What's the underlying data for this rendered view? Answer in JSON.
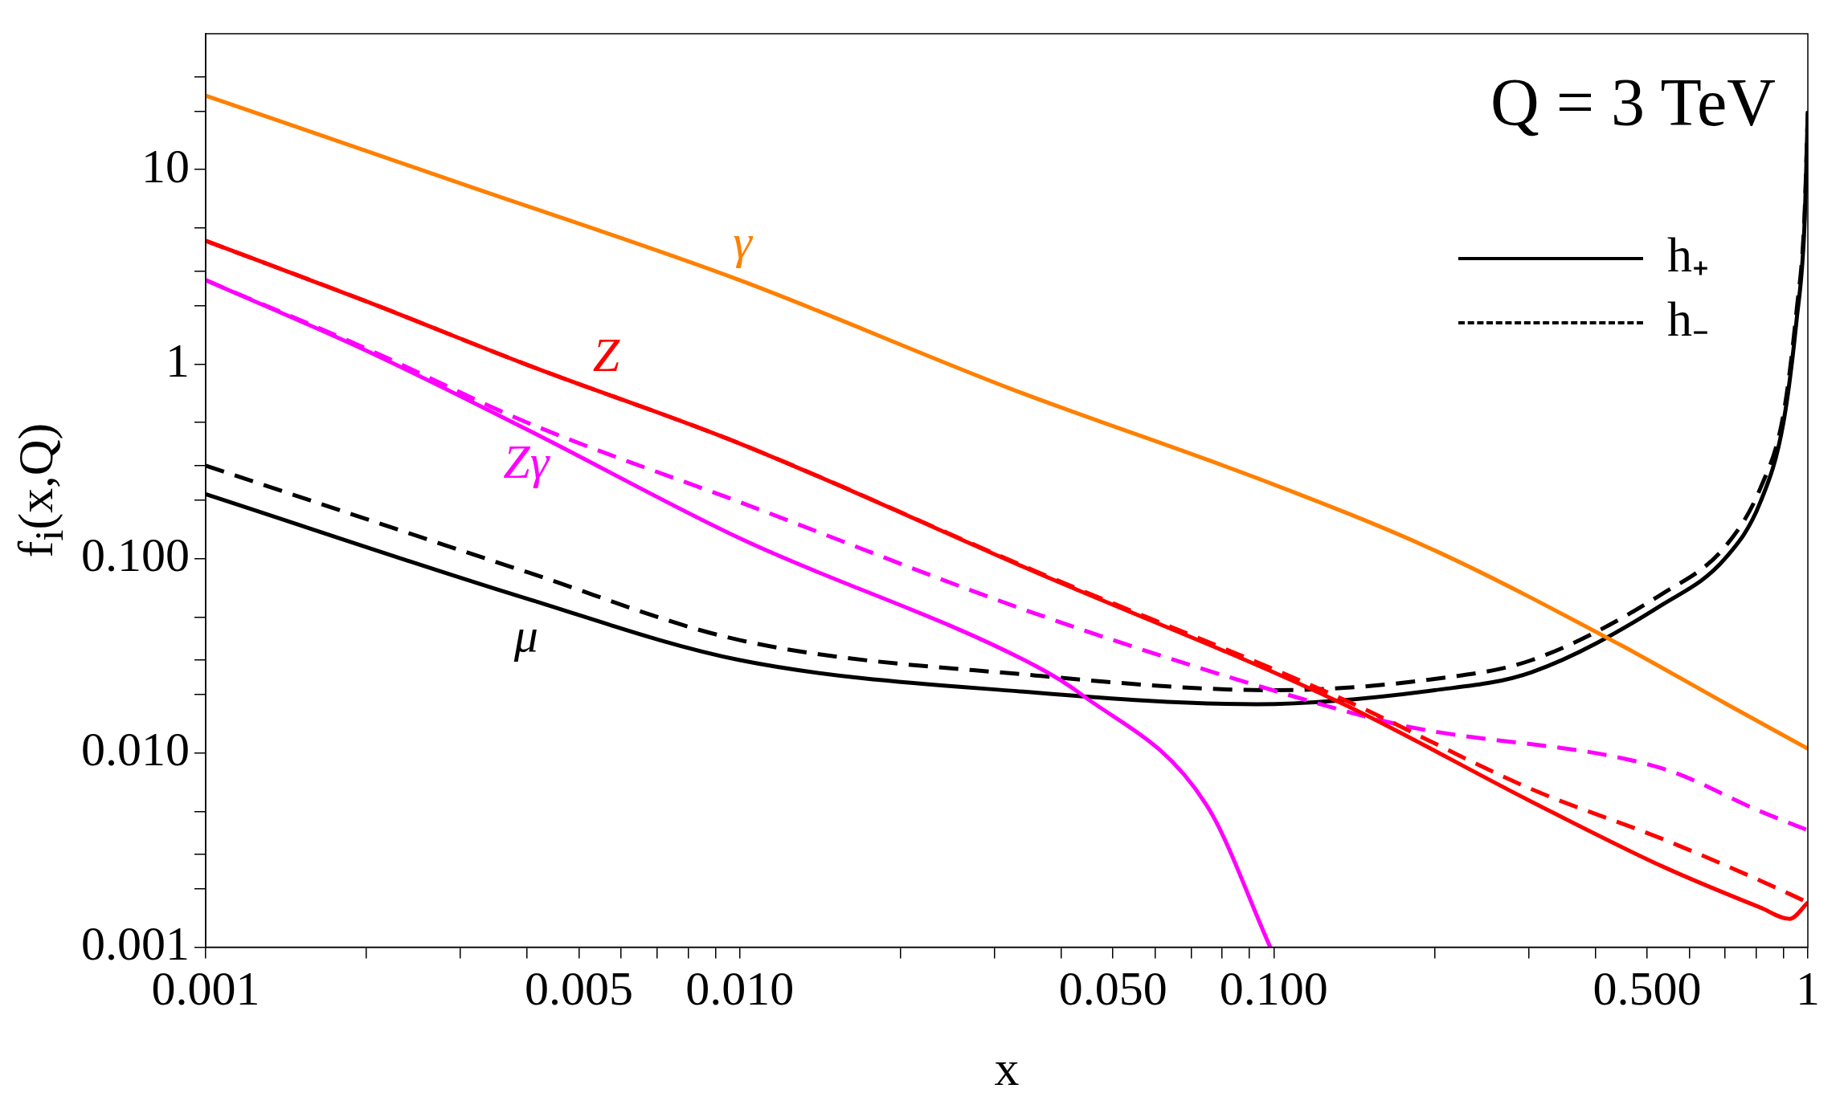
{
  "chart_data": {
    "type": "line",
    "xlabel": "x",
    "ylabel": "f$_{i}$(x,Q)",
    "log": "xy",
    "xlim": [
      0.001,
      1
    ],
    "ylim": [
      0.001,
      50
    ],
    "xticks": [
      {
        "value": 0.001,
        "label": "0.001"
      },
      {
        "value": 0.002,
        "label": null
      },
      {
        "value": 0.003,
        "label": null
      },
      {
        "value": 0.004,
        "label": null
      },
      {
        "value": 0.005,
        "label": "0.005"
      },
      {
        "value": 0.006,
        "label": null
      },
      {
        "value": 0.007,
        "label": null
      },
      {
        "value": 0.008,
        "label": null
      },
      {
        "value": 0.009,
        "label": null
      },
      {
        "value": 0.01,
        "label": "0.010"
      },
      {
        "value": 0.02,
        "label": null
      },
      {
        "value": 0.03,
        "label": null
      },
      {
        "value": 0.04,
        "label": null
      },
      {
        "value": 0.05,
        "label": "0.050"
      },
      {
        "value": 0.06,
        "label": null
      },
      {
        "value": 0.07,
        "label": null
      },
      {
        "value": 0.08,
        "label": null
      },
      {
        "value": 0.09,
        "label": null
      },
      {
        "value": 0.1,
        "label": "0.100"
      },
      {
        "value": 0.2,
        "label": null
      },
      {
        "value": 0.3,
        "label": null
      },
      {
        "value": 0.4,
        "label": null
      },
      {
        "value": 0.5,
        "label": "0.500"
      },
      {
        "value": 0.6,
        "label": null
      },
      {
        "value": 0.7,
        "label": null
      },
      {
        "value": 0.8,
        "label": null
      },
      {
        "value": 0.9,
        "label": null
      },
      {
        "value": 1,
        "label": "1"
      }
    ],
    "yticks": [
      {
        "value": 0.001,
        "label": "0.001"
      },
      {
        "value": 0.002,
        "label": null
      },
      {
        "value": 0.003,
        "label": null
      },
      {
        "value": 0.005,
        "label": null
      },
      {
        "value": 0.01,
        "label": "0.010"
      },
      {
        "value": 0.02,
        "label": null
      },
      {
        "value": 0.03,
        "label": null
      },
      {
        "value": 0.05,
        "label": null
      },
      {
        "value": 0.1,
        "label": "0.100"
      },
      {
        "value": 0.2,
        "label": null
      },
      {
        "value": 0.3,
        "label": null
      },
      {
        "value": 0.5,
        "label": null
      },
      {
        "value": 1,
        "label": "1"
      },
      {
        "value": 2,
        "label": null
      },
      {
        "value": 3,
        "label": null
      },
      {
        "value": 5,
        "label": null
      },
      {
        "value": 10,
        "label": "10"
      },
      {
        "value": 20,
        "label": null
      },
      {
        "value": 30,
        "label": null
      }
    ],
    "series": [
      {
        "name": "γ",
        "color": "#ff8000",
        "line_style": "solid",
        "x": [
          0.001,
          0.003,
          0.01,
          0.032,
          0.1,
          0.2,
          0.445,
          0.7,
          1
        ],
        "values": [
          24,
          8.5,
          2.7,
          0.75,
          0.24,
          0.11,
          0.036,
          0.018,
          0.0105
        ]
      },
      {
        "name": "Z",
        "color": "#ff0000",
        "line_style": "solid",
        "x": [
          0.001,
          0.002,
          0.004,
          0.01,
          0.0358,
          0.134,
          0.304,
          0.535,
          0.815,
          0.925,
          1
        ],
        "values": [
          4.3,
          2.1,
          0.99,
          0.39,
          0.085,
          0.018,
          0.0056,
          0.0026,
          0.0016,
          0.0014,
          0.0017
        ]
      },
      {
        "color": "#ff0000",
        "line_style": "dashed",
        "x": [
          0.001,
          0.002,
          0.004,
          0.01,
          0.0358,
          0.134,
          0.304,
          0.535,
          0.815,
          1
        ],
        "values": [
          4.3,
          2.1,
          0.99,
          0.39,
          0.086,
          0.019,
          0.0065,
          0.0036,
          0.0022,
          0.0017
        ]
      },
      {
        "name": "Zγ",
        "color": "#ff00ff",
        "line_style": "solid",
        "x": [
          0.001,
          0.002,
          0.004,
          0.01,
          0.0358,
          0.0436,
          0.0748,
          0.0985
        ],
        "values": [
          2.7,
          1.17,
          0.46,
          0.127,
          0.028,
          0.02,
          0.0054,
          0.001
        ]
      },
      {
        "color": "#ff00ff",
        "line_style": "dashed",
        "x": [
          0.001,
          0.002,
          0.004,
          0.01,
          0.0358,
          0.0995,
          0.175,
          0.535,
          0.815,
          1
        ],
        "values": [
          2.7,
          1.2,
          0.5,
          0.195,
          0.052,
          0.021,
          0.0138,
          0.0083,
          0.005,
          0.004
        ]
      },
      {
        "name": "μ",
        "color": "#000000",
        "line_style": "solid",
        "x": [
          0.001,
          0.004,
          0.01,
          0.0358,
          0.093,
          0.2,
          0.304,
          0.535,
          0.7,
          0.815,
          0.9,
          0.953,
          0.985,
          1
        ],
        "values": [
          0.214,
          0.062,
          0.03,
          0.0204,
          0.0178,
          0.021,
          0.026,
          0.058,
          0.1,
          0.195,
          0.5,
          1.7,
          5,
          20
        ]
      },
      {
        "color": "#000000",
        "line_style": "dashed",
        "x": [
          0.001,
          0.004,
          0.01,
          0.0358,
          0.0995,
          0.2,
          0.304,
          0.535,
          0.7,
          0.815,
          0.9,
          0.953,
          0.985,
          1
        ],
        "values": [
          0.3,
          0.085,
          0.038,
          0.025,
          0.021,
          0.024,
          0.03,
          0.066,
          0.115,
          0.23,
          0.55,
          1.9,
          5.5,
          20
        ]
      }
    ],
    "annotations": [
      "Q = 3 TeV",
      "h₊",
      "h₋"
    ]
  }
}
